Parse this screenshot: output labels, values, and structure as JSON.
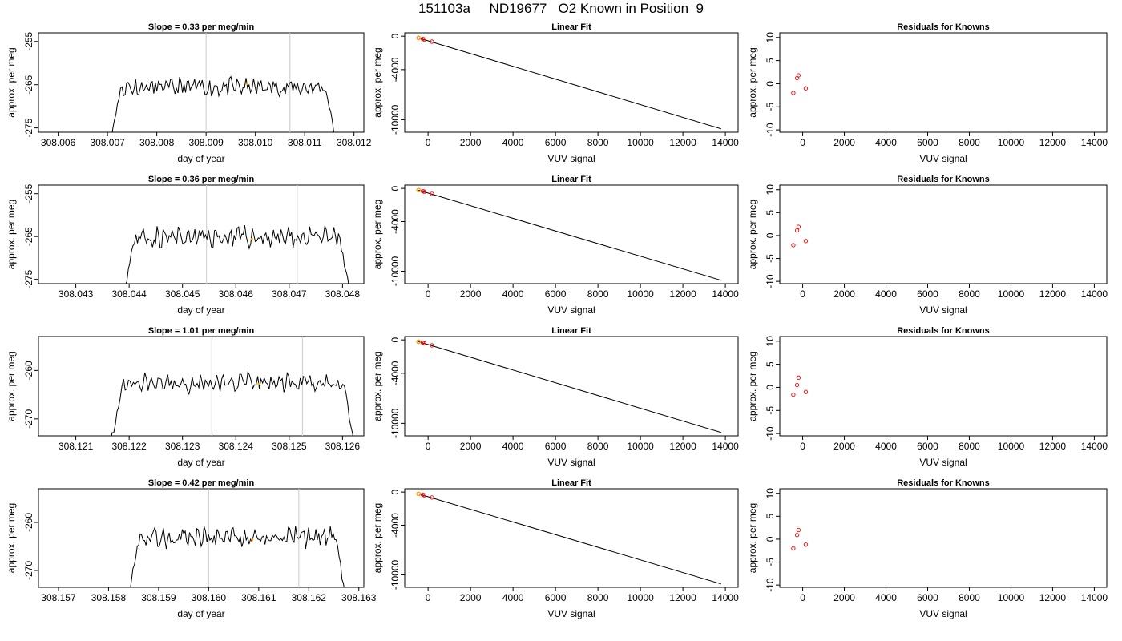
{
  "figure_title": "151103a     ND19677   O2 Known in Position  9",
  "colors": {
    "trace": "#000000",
    "marker_window": "#d3d3d3",
    "current_point": "#ffa500",
    "residual_point": "#ff0000",
    "frame": "#000000"
  },
  "chart_data": [
    {
      "type": "line",
      "title": "Slope =  0.33  per meg/min",
      "xlabel": "day of year",
      "ylabel": "approx. per meg",
      "xlim": [
        308.0056,
        308.0122
      ],
      "ylim": [
        -276,
        -253
      ],
      "xticks": [
        "308.006",
        "308.007",
        "308.008",
        "308.009",
        "308.010",
        "308.011",
        "308.012"
      ],
      "xtick_values": [
        308.006,
        308.007,
        308.008,
        308.009,
        308.01,
        308.011,
        308.012
      ],
      "yticks": [
        "-255",
        "-265",
        "-275"
      ],
      "ytick_values": [
        -255,
        -265,
        -275
      ],
      "xstart": 308.00705,
      "xend": 308.01165,
      "base": -265.6,
      "amp": 1.4,
      "seed": 11,
      "window_lines": [
        308.009,
        308.0107
      ],
      "highlight": {
        "x": 308.00983,
        "y": -264.8
      }
    },
    {
      "type": "scatter",
      "title": "Linear Fit",
      "xlabel": "VUV signal",
      "ylabel": "approx. per meg",
      "xlim": [
        -1100,
        14600
      ],
      "ylim": [
        -11500,
        400
      ],
      "xticks": [
        "0",
        "2000",
        "4000",
        "6000",
        "8000",
        "10000",
        "12000",
        "14000"
      ],
      "xtick_values": [
        0,
        2000,
        4000,
        6000,
        8000,
        10000,
        12000,
        14000
      ],
      "yticks": [
        "0",
        "-4000",
        "-10000"
      ],
      "ytick_values": [
        0,
        -4000,
        -10000
      ],
      "fit_line": {
        "x": [
          -450,
          13800
        ],
        "y": [
          -215,
          -11095
        ]
      },
      "points": [
        {
          "x": -450,
          "y": -217
        },
        {
          "x": -250,
          "y": -330
        },
        {
          "x": -180,
          "y": -390
        },
        {
          "x": 180,
          "y": -650
        }
      ],
      "highlight": {
        "x": -450,
        "y": -217
      }
    },
    {
      "type": "scatter",
      "title": "Residuals for Knowns",
      "xlabel": "VUV signal",
      "ylabel": "approx. per meg",
      "xlim": [
        -1100,
        14600
      ],
      "ylim": [
        -10.5,
        11
      ],
      "xticks": [
        "0",
        "2000",
        "4000",
        "6000",
        "8000",
        "10000",
        "12000",
        "14000"
      ],
      "xtick_values": [
        0,
        2000,
        4000,
        6000,
        8000,
        10000,
        12000,
        14000
      ],
      "yticks": [
        "-10",
        "-5",
        "0",
        "5",
        "10"
      ],
      "ytick_values": [
        -10,
        -5,
        0,
        5,
        10
      ],
      "points": [
        {
          "x": -450,
          "y": -2.0
        },
        {
          "x": -270,
          "y": 1.2
        },
        {
          "x": -200,
          "y": 1.8
        },
        {
          "x": 150,
          "y": -1.0
        }
      ]
    },
    {
      "type": "line",
      "title": "Slope =  0.36  per meg/min",
      "xlabel": "day of year",
      "ylabel": "approx. per meg",
      "xlim": [
        308.0423,
        308.0484
      ],
      "ylim": [
        -276,
        -253
      ],
      "xticks": [
        "308.043",
        "308.044",
        "308.045",
        "308.046",
        "308.047",
        "308.048"
      ],
      "xtick_values": [
        308.043,
        308.044,
        308.045,
        308.046,
        308.047,
        308.048
      ],
      "yticks": [
        "-255",
        "-265",
        "-275"
      ],
      "ytick_values": [
        -255,
        -265,
        -275
      ],
      "xstart": 308.0439,
      "xend": 308.04815,
      "base": -265.2,
      "amp": 1.6,
      "seed": 23,
      "window_lines": [
        308.04545,
        308.04715
      ],
      "highlight": {
        "x": 308.0463,
        "y": -265.6
      }
    },
    {
      "type": "scatter",
      "title": "Linear Fit",
      "xlabel": "VUV signal",
      "ylabel": "approx. per meg",
      "xlim": [
        -1100,
        14600
      ],
      "ylim": [
        -11500,
        400
      ],
      "xticks": [
        "0",
        "2000",
        "4000",
        "6000",
        "8000",
        "10000",
        "12000",
        "14000"
      ],
      "xtick_values": [
        0,
        2000,
        4000,
        6000,
        8000,
        10000,
        12000,
        14000
      ],
      "yticks": [
        "0",
        "-4000",
        "-10000"
      ],
      "ytick_values": [
        0,
        -4000,
        -10000
      ],
      "fit_line": {
        "x": [
          -450,
          13800
        ],
        "y": [
          -215,
          -11095
        ]
      },
      "points": [
        {
          "x": -450,
          "y": -217
        },
        {
          "x": -250,
          "y": -330
        },
        {
          "x": -180,
          "y": -390
        },
        {
          "x": 180,
          "y": -650
        }
      ],
      "highlight": {
        "x": -450,
        "y": -217
      }
    },
    {
      "type": "scatter",
      "title": "Residuals for Knowns",
      "xlabel": "VUV signal",
      "ylabel": "approx. per meg",
      "xlim": [
        -1100,
        14600
      ],
      "ylim": [
        -10.5,
        11
      ],
      "xticks": [
        "0",
        "2000",
        "4000",
        "6000",
        "8000",
        "10000",
        "12000",
        "14000"
      ],
      "xtick_values": [
        0,
        2000,
        4000,
        6000,
        8000,
        10000,
        12000,
        14000
      ],
      "yticks": [
        "-10",
        "-5",
        "0",
        "5",
        "10"
      ],
      "ytick_values": [
        -10,
        -5,
        0,
        5,
        10
      ],
      "points": [
        {
          "x": -450,
          "y": -2.1
        },
        {
          "x": -270,
          "y": 1.1
        },
        {
          "x": -200,
          "y": 1.9
        },
        {
          "x": 150,
          "y": -1.2
        }
      ]
    },
    {
      "type": "line",
      "title": "Slope =  1.01  per meg/min",
      "xlabel": "day of year",
      "ylabel": "approx. per meg",
      "xlim": [
        308.1203,
        308.1264
      ],
      "ylim": [
        -273.5,
        -253
      ],
      "xticks": [
        "308.121",
        "308.122",
        "308.123",
        "308.124",
        "308.125",
        "308.126"
      ],
      "xtick_values": [
        308.121,
        308.122,
        308.123,
        308.124,
        308.125,
        308.126
      ],
      "yticks": [
        "-260",
        "-270"
      ],
      "ytick_values": [
        -260,
        -270
      ],
      "xstart": 308.12165,
      "xend": 308.12625,
      "base": -262.6,
      "amp": 1.3,
      "seed": 37,
      "window_lines": [
        308.12355,
        308.12525
      ],
      "highlight": {
        "x": 308.12443,
        "y": -262.8
      }
    },
    {
      "type": "scatter",
      "title": "Linear Fit",
      "xlabel": "VUV signal",
      "ylabel": "approx. per meg",
      "xlim": [
        -1100,
        14600
      ],
      "ylim": [
        -11500,
        400
      ],
      "xticks": [
        "0",
        "2000",
        "4000",
        "6000",
        "8000",
        "10000",
        "12000",
        "14000"
      ],
      "xtick_values": [
        0,
        2000,
        4000,
        6000,
        8000,
        10000,
        12000,
        14000
      ],
      "yticks": [
        "0",
        "-4000",
        "-10000"
      ],
      "ytick_values": [
        0,
        -4000,
        -10000
      ],
      "fit_line": {
        "x": [
          -450,
          13800
        ],
        "y": [
          -215,
          -11095
        ]
      },
      "points": [
        {
          "x": -450,
          "y": -217
        },
        {
          "x": -250,
          "y": -330
        },
        {
          "x": -180,
          "y": -390
        },
        {
          "x": 180,
          "y": -650
        }
      ],
      "highlight": {
        "x": -450,
        "y": -217
      }
    },
    {
      "type": "scatter",
      "title": "Residuals for Knowns",
      "xlabel": "VUV signal",
      "ylabel": "approx. per meg",
      "xlim": [
        -1100,
        14600
      ],
      "ylim": [
        -10.5,
        11
      ],
      "xticks": [
        "0",
        "2000",
        "4000",
        "6000",
        "8000",
        "10000",
        "12000",
        "14000"
      ],
      "xtick_values": [
        0,
        2000,
        4000,
        6000,
        8000,
        10000,
        12000,
        14000
      ],
      "yticks": [
        "-10",
        "-5",
        "0",
        "5",
        "10"
      ],
      "ytick_values": [
        -10,
        -5,
        0,
        5,
        10
      ],
      "points": [
        {
          "x": -450,
          "y": -1.6
        },
        {
          "x": -270,
          "y": 0.5
        },
        {
          "x": -200,
          "y": 2.1
        },
        {
          "x": 150,
          "y": -1.0
        }
      ]
    },
    {
      "type": "line",
      "title": "Slope =  0.42  per meg/min",
      "xlabel": "day of year",
      "ylabel": "approx. per meg",
      "xlim": [
        308.1566,
        308.1631
      ],
      "ylim": [
        -273.5,
        -253
      ],
      "xticks": [
        "308.157",
        "308.158",
        "308.159",
        "308.160",
        "308.161",
        "308.162",
        "308.163"
      ],
      "xtick_values": [
        308.157,
        308.158,
        308.159,
        308.16,
        308.161,
        308.162,
        308.163
      ],
      "yticks": [
        "-260",
        "-270"
      ],
      "ytick_values": [
        -260,
        -270
      ],
      "xstart": 308.1584,
      "xend": 308.16275,
      "base": -263.1,
      "amp": 1.4,
      "seed": 53,
      "window_lines": [
        308.16,
        308.1618
      ],
      "highlight": {
        "x": 308.16087,
        "y": -263.6
      }
    },
    {
      "type": "scatter",
      "title": "Linear Fit",
      "xlabel": "VUV signal",
      "ylabel": "approx. per meg",
      "xlim": [
        -1100,
        14600
      ],
      "ylim": [
        -11500,
        400
      ],
      "xticks": [
        "0",
        "2000",
        "4000",
        "6000",
        "8000",
        "10000",
        "12000",
        "14000"
      ],
      "xtick_values": [
        0,
        2000,
        4000,
        6000,
        8000,
        10000,
        12000,
        14000
      ],
      "yticks": [
        "0",
        "-4000",
        "-10000"
      ],
      "ytick_values": [
        0,
        -4000,
        -10000
      ],
      "fit_line": {
        "x": [
          -450,
          13800
        ],
        "y": [
          -215,
          -11095
        ]
      },
      "points": [
        {
          "x": -450,
          "y": -217
        },
        {
          "x": -250,
          "y": -330
        },
        {
          "x": -180,
          "y": -390
        },
        {
          "x": 180,
          "y": -650
        }
      ],
      "highlight": {
        "x": -450,
        "y": -217
      }
    },
    {
      "type": "scatter",
      "title": "Residuals for Knowns",
      "xlabel": "VUV signal",
      "ylabel": "approx. per meg",
      "xlim": [
        -1100,
        14600
      ],
      "ylim": [
        -10.5,
        11
      ],
      "xticks": [
        "0",
        "2000",
        "4000",
        "6000",
        "8000",
        "10000",
        "12000",
        "14000"
      ],
      "xtick_values": [
        0,
        2000,
        4000,
        6000,
        8000,
        10000,
        12000,
        14000
      ],
      "yticks": [
        "-10",
        "-5",
        "0",
        "5",
        "10"
      ],
      "ytick_values": [
        -10,
        -5,
        0,
        5,
        10
      ],
      "points": [
        {
          "x": -450,
          "y": -2.0
        },
        {
          "x": -270,
          "y": 0.9
        },
        {
          "x": -200,
          "y": 2.0
        },
        {
          "x": 150,
          "y": -1.2
        }
      ]
    }
  ]
}
